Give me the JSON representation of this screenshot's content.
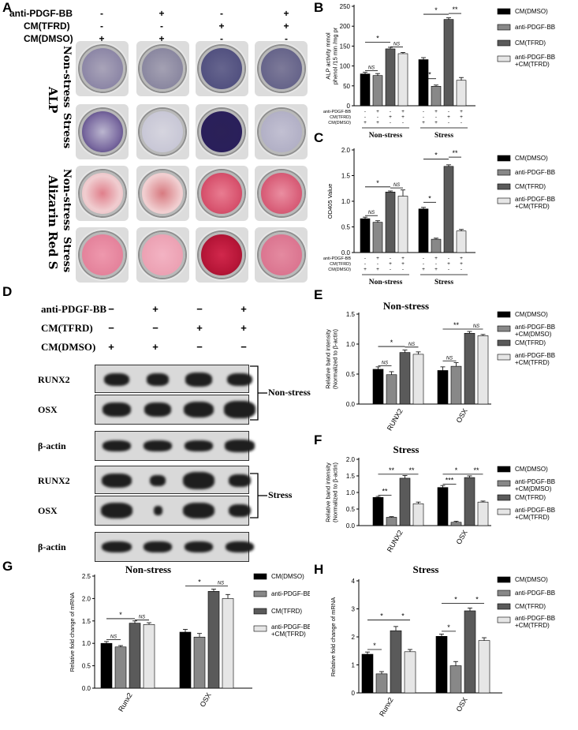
{
  "panels": {
    "A": "A",
    "B": "B",
    "C": "C",
    "D": "D",
    "E": "E",
    "F": "F",
    "G": "G",
    "H": "H"
  },
  "panel_a": {
    "conditions": [
      {
        "label": "anti-PDGF-BB",
        "marks": [
          "-",
          "+",
          "-",
          "+"
        ]
      },
      {
        "label": "CM(TFRD)",
        "marks": [
          "-",
          "-",
          "+",
          "+"
        ]
      },
      {
        "label": "CM(DMSO)",
        "marks": [
          "+",
          "+",
          "-",
          "-"
        ]
      }
    ],
    "group_labels": [
      "ALP",
      "Alizarin Red S"
    ],
    "row_labels": [
      "Non-stress",
      "Stress",
      "Non-stress",
      "Stress"
    ]
  },
  "panel_d": {
    "conditions": [
      {
        "label": "anti-PDGF-BB",
        "marks": [
          "−",
          "+",
          "−",
          "+"
        ]
      },
      {
        "label": "CM(TFRD)",
        "marks": [
          "−",
          "−",
          "+",
          "+"
        ]
      },
      {
        "label": "CM(DMSO)",
        "marks": [
          "+",
          "+",
          "−",
          "−"
        ]
      }
    ],
    "blot_labels": [
      "RUNX2",
      "OSX",
      "β-actin",
      "RUNX2",
      "OSX",
      "β-actin"
    ],
    "bracket_labels": [
      "Non-stress",
      "Stress"
    ]
  },
  "chart_data": [
    {
      "id": "B",
      "type": "bar",
      "ylabel": "ALP activity mmol phenol /15 min /mg pr",
      "ylim": [
        0,
        250
      ],
      "yticks": [
        0,
        50,
        100,
        150,
        200,
        250
      ],
      "groups": [
        "Non-stress",
        "Stress"
      ],
      "row_labels": [
        "anti-PDGF-BB",
        "CM(TFRD)",
        "CM(DMSO)"
      ],
      "sign_rows": [
        [
          "-",
          "+",
          "-",
          "+"
        ],
        [
          "-",
          "-",
          "+",
          "+"
        ],
        [
          "+",
          "+",
          "-",
          "-"
        ]
      ],
      "series": [
        {
          "name": "CM(DMSO)",
          "color": "#000000",
          "values": [
            80,
            116
          ],
          "err": [
            4,
            5
          ]
        },
        {
          "name": "anti-PDGF-BB",
          "color": "#888888",
          "values": [
            76,
            49
          ],
          "err": [
            5,
            3
          ]
        },
        {
          "name": "CM(TFRD)",
          "color": "#5a5a5a",
          "values": [
            143,
            217
          ],
          "err": [
            4,
            4
          ]
        },
        {
          "name": "anti-PDGF-BB +CM(TFRD)",
          "color": "#e6e6e6",
          "values": [
            131,
            64
          ],
          "err": [
            3,
            7
          ]
        }
      ],
      "annotations": [
        "NS",
        "*",
        "NS",
        "*",
        "*",
        "**"
      ]
    },
    {
      "id": "C",
      "type": "bar",
      "ylabel": "OD405 Value",
      "ylim": [
        0,
        2.0
      ],
      "yticks": [
        0.0,
        0.5,
        1.0,
        1.5,
        2.0
      ],
      "groups": [
        "Non-stress",
        "Stress"
      ],
      "row_labels": [
        "anti-PDGF-BB",
        "CM(TFRD)",
        "CM(DMSO)"
      ],
      "sign_rows": [
        [
          "-",
          "+",
          "-",
          "+"
        ],
        [
          "-",
          "-",
          "+",
          "+"
        ],
        [
          "+",
          "+",
          "-",
          "-"
        ]
      ],
      "series": [
        {
          "name": "CM(DMSO)",
          "color": "#000000",
          "values": [
            0.66,
            0.85
          ],
          "err": [
            0.03,
            0.03
          ]
        },
        {
          "name": "anti-PDGF-BB",
          "color": "#888888",
          "values": [
            0.59,
            0.26
          ],
          "err": [
            0.03,
            0.02
          ]
        },
        {
          "name": "CM(TFRD)",
          "color": "#5a5a5a",
          "values": [
            1.18,
            1.68
          ],
          "err": [
            0.02,
            0.03
          ]
        },
        {
          "name": "anti-PDGF-BB +CM(TFRD)",
          "color": "#e6e6e6",
          "values": [
            1.1,
            0.42
          ],
          "err": [
            0.12,
            0.03
          ]
        }
      ],
      "annotations": [
        "NS",
        "*",
        "NS",
        "*",
        "*",
        "**"
      ]
    },
    {
      "id": "E",
      "type": "bar",
      "title": "Non-stress",
      "ylabel": "Relative band intensity (Normalized to β-actin)",
      "ylim": [
        0,
        1.5
      ],
      "yticks": [
        0.0,
        0.5,
        1.0,
        1.5
      ],
      "categories": [
        "RUNX2",
        "OSX"
      ],
      "series": [
        {
          "name": "CM(DMSO)",
          "color": "#000000",
          "values": [
            0.58,
            0.56
          ],
          "err": [
            0.04,
            0.06
          ]
        },
        {
          "name": "anti-PDGF-BB +CM(DMSO)",
          "color": "#888888",
          "values": [
            0.49,
            0.63
          ],
          "err": [
            0.05,
            0.06
          ]
        },
        {
          "name": "CM(TFRD)",
          "color": "#5a5a5a",
          "values": [
            0.86,
            1.18
          ],
          "err": [
            0.04,
            0.03
          ]
        },
        {
          "name": "anti-PDGF-BB +CM(TFRD)",
          "color": "#e6e6e6",
          "values": [
            0.83,
            1.14
          ],
          "err": [
            0.04,
            0.02
          ]
        }
      ],
      "annotations": [
        "NS",
        "*",
        "NS",
        "NS",
        "**",
        "NS"
      ]
    },
    {
      "id": "F",
      "type": "bar",
      "title": "Stress",
      "ylabel": "Relative band intensity (Normalized to β-actin)",
      "ylim": [
        0,
        2.0
      ],
      "yticks": [
        0.0,
        0.5,
        1.0,
        1.5,
        2.0
      ],
      "categories": [
        "RUNX2",
        "OSX"
      ],
      "series": [
        {
          "name": "CM(DMSO)",
          "color": "#000000",
          "values": [
            0.85,
            1.15
          ],
          "err": [
            0.03,
            0.06
          ]
        },
        {
          "name": "anti-PDGF-BB +CM(DMSO)",
          "color": "#888888",
          "values": [
            0.25,
            0.1
          ],
          "err": [
            0.02,
            0.03
          ]
        },
        {
          "name": "CM(TFRD)",
          "color": "#5a5a5a",
          "values": [
            1.43,
            1.45
          ],
          "err": [
            0.08,
            0.05
          ]
        },
        {
          "name": "anti-PDGF-BB +CM(TFRD)",
          "color": "#e6e6e6",
          "values": [
            0.66,
            0.71
          ],
          "err": [
            0.05,
            0.03
          ]
        }
      ],
      "annotations": [
        "**",
        "**",
        "**",
        "***",
        "*",
        "**"
      ]
    },
    {
      "id": "G",
      "type": "bar",
      "title": "Non-stress",
      "ylabel": "Relative fold change of mRNA",
      "ylim": [
        0,
        2.5
      ],
      "yticks": [
        0.0,
        0.5,
        1.0,
        1.5,
        2.0,
        2.5
      ],
      "categories": [
        "Runx2",
        "OSX"
      ],
      "series": [
        {
          "name": "CM(DMSO)",
          "color": "#000000",
          "values": [
            1.0,
            1.25
          ],
          "err": [
            0.04,
            0.06
          ]
        },
        {
          "name": "anti-PDGF-BB",
          "color": "#888888",
          "values": [
            0.92,
            1.14
          ],
          "err": [
            0.03,
            0.08
          ]
        },
        {
          "name": "CM(TFRD)",
          "color": "#5a5a5a",
          "values": [
            1.45,
            2.16
          ],
          "err": [
            0.05,
            0.05
          ]
        },
        {
          "name": "anti-PDGF-BB +CM(TFRD)",
          "color": "#e6e6e6",
          "values": [
            1.42,
            2.0
          ],
          "err": [
            0.04,
            0.09
          ]
        }
      ],
      "annotations": [
        "NS",
        "*",
        "NS",
        "*",
        "NS"
      ]
    },
    {
      "id": "H",
      "type": "bar",
      "title": "Stress",
      "ylabel": "Relative fold change of mRNA",
      "ylim": [
        0,
        4
      ],
      "yticks": [
        0,
        1,
        2,
        3,
        4
      ],
      "categories": [
        "Runx2",
        "OSX"
      ],
      "series": [
        {
          "name": "CM(DMSO)",
          "color": "#000000",
          "values": [
            1.38,
            2.02
          ],
          "err": [
            0.08,
            0.08
          ]
        },
        {
          "name": "anti-PDGF-BB",
          "color": "#888888",
          "values": [
            0.68,
            0.97
          ],
          "err": [
            0.08,
            0.15
          ]
        },
        {
          "name": "CM(TFRD)",
          "color": "#5a5a5a",
          "values": [
            2.22,
            2.93
          ],
          "err": [
            0.15,
            0.1
          ]
        },
        {
          "name": "anti-PDGF-BB +CM(TFRD)",
          "color": "#e6e6e6",
          "values": [
            1.47,
            1.87
          ],
          "err": [
            0.08,
            0.1
          ]
        }
      ],
      "annotations": [
        "*",
        "*",
        "*",
        "*",
        "*",
        "*"
      ]
    }
  ]
}
